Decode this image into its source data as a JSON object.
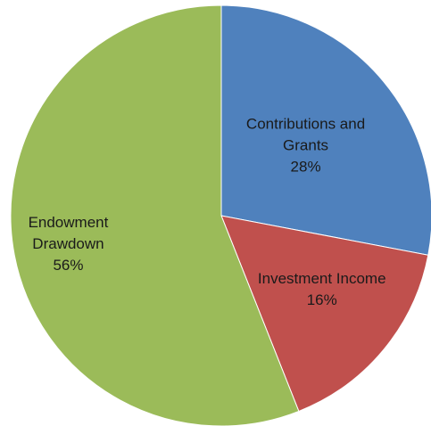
{
  "chart_data": {
    "type": "pie",
    "title": "",
    "slices": [
      {
        "lines": [
          "Contributions and",
          "Grants"
        ],
        "value": 28,
        "display": "28%",
        "color": "#4f81bd"
      },
      {
        "lines": [
          "Investment Income"
        ],
        "value": 16,
        "display": "16%",
        "color": "#c0504d"
      },
      {
        "lines": [
          "Endowment",
          "Drawdown"
        ],
        "value": 56,
        "display": "56%",
        "color": "#9bbb59"
      }
    ],
    "start": "12 o'clock",
    "direction": "clockwise"
  }
}
